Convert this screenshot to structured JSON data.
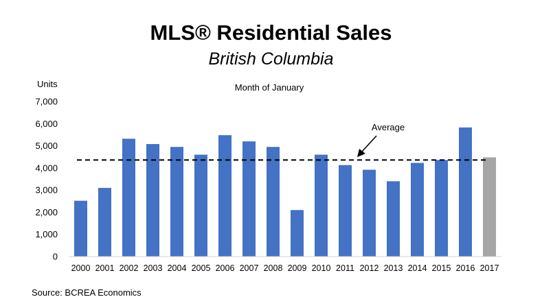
{
  "title": "MLS® Residential Sales",
  "subtitle": "British Columbia",
  "source": "Source: BCREA Economics",
  "chart_data": {
    "type": "bar",
    "title": "Month of January",
    "ylabel": "Units",
    "xlabel": "",
    "ylim": [
      0,
      7000
    ],
    "yticks": [
      "0",
      "1,000",
      "2,000",
      "3,000",
      "4,000",
      "5,000",
      "6,000",
      "7,000"
    ],
    "ytick_values": [
      0,
      1000,
      2000,
      3000,
      4000,
      5000,
      6000,
      7000
    ],
    "categories": [
      "2000",
      "2001",
      "2002",
      "2003",
      "2004",
      "2005",
      "2006",
      "2007",
      "2008",
      "2009",
      "2010",
      "2011",
      "2012",
      "2013",
      "2014",
      "2015",
      "2016",
      "2017"
    ],
    "values": [
      2520,
      3100,
      5320,
      5080,
      4950,
      4600,
      5480,
      5200,
      4950,
      2100,
      4600,
      4130,
      3920,
      3400,
      4230,
      4360,
      5830,
      4480
    ],
    "highlight_category": "2017",
    "bar_color": "#4472C4",
    "highlight_color": "#A6A6A6",
    "average": {
      "label": "Average",
      "value": 4360
    },
    "grid": false,
    "legend": "none"
  }
}
